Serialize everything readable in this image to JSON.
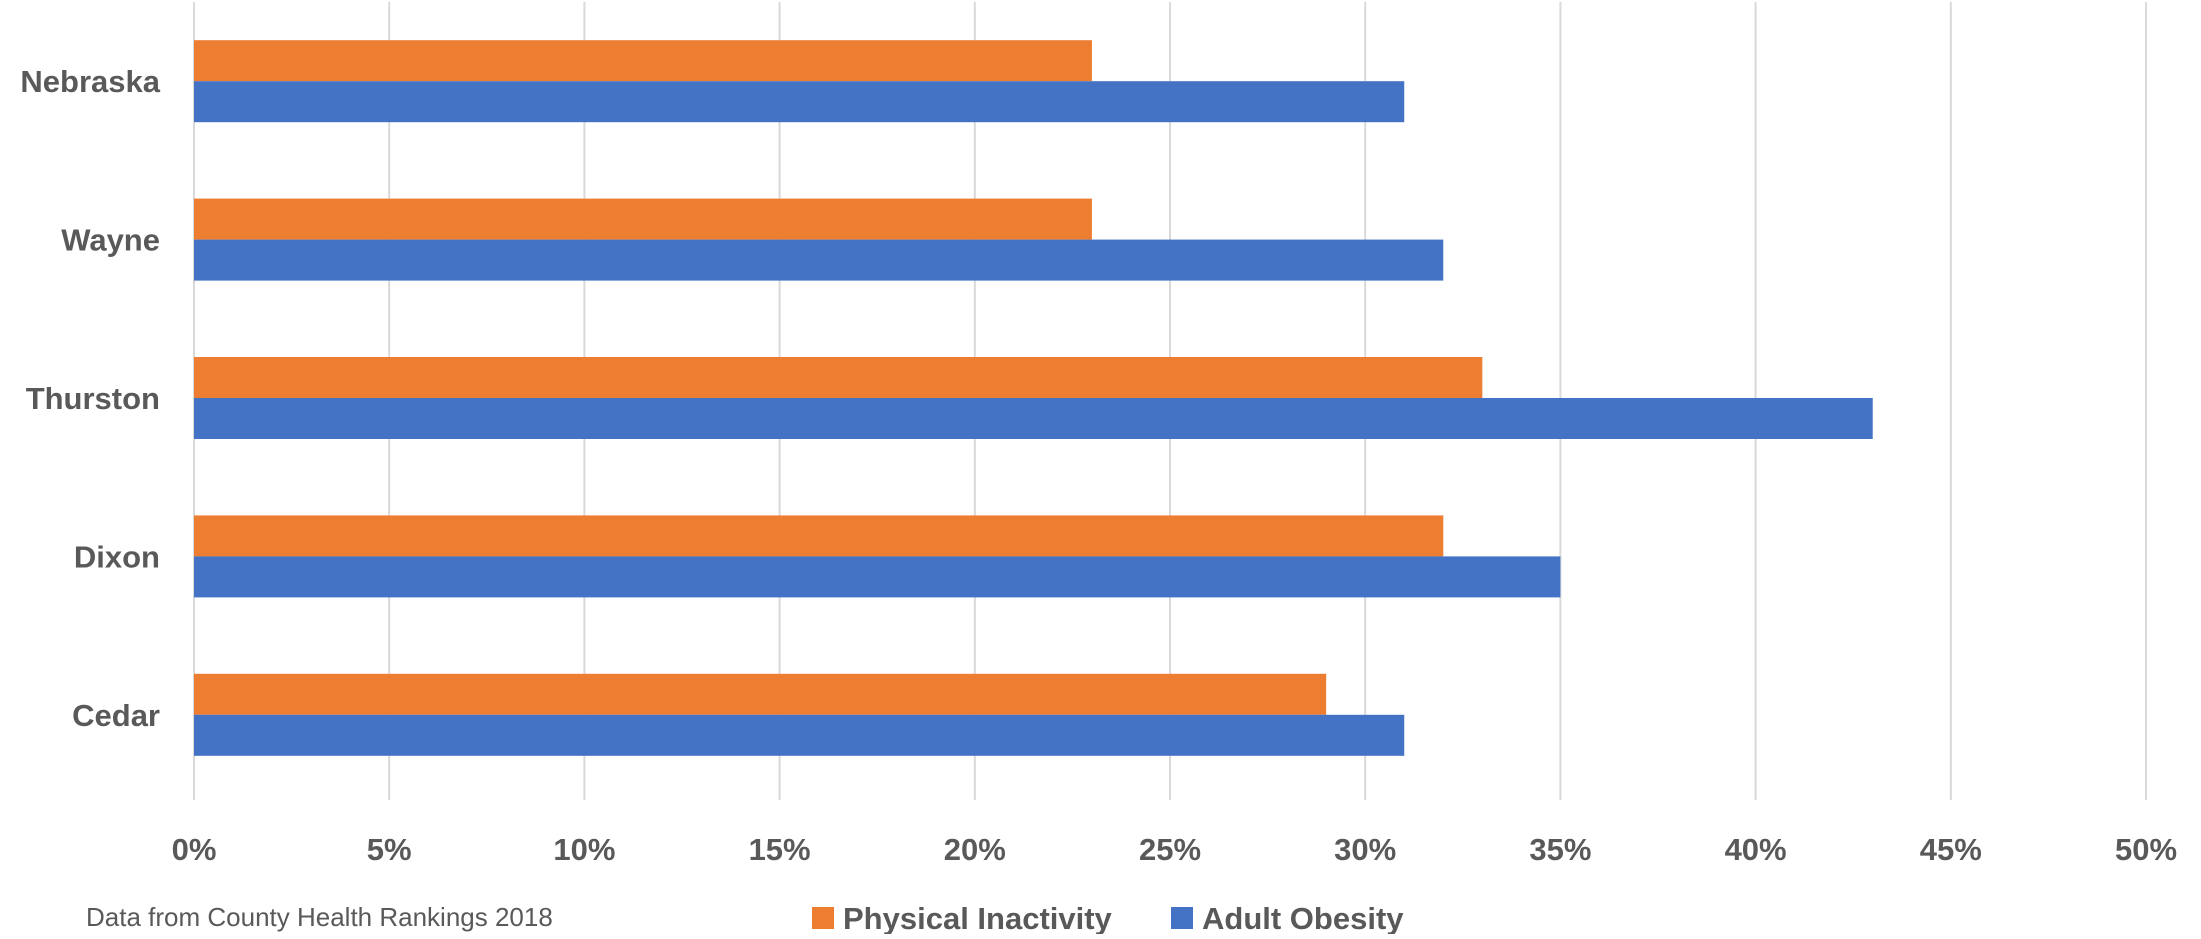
{
  "chart_data": {
    "type": "bar",
    "orientation": "horizontal",
    "categories": [
      "Nebraska",
      "Wayne",
      "Thurston",
      "Dixon",
      "Cedar"
    ],
    "series": [
      {
        "name": "Physical Inactivity",
        "color": "#ED7D31",
        "values": [
          0.23,
          0.23,
          0.33,
          0.32,
          0.29
        ]
      },
      {
        "name": "Adult Obesity",
        "color": "#4472C4",
        "values": [
          0.31,
          0.32,
          0.43,
          0.35,
          0.31
        ]
      }
    ],
    "xlim": [
      0,
      0.5
    ],
    "xticks": [
      0,
      0.05,
      0.1,
      0.15,
      0.2,
      0.25,
      0.3,
      0.35,
      0.4,
      0.45,
      0.5
    ],
    "xtick_labels": [
      "0%",
      "5%",
      "10%",
      "15%",
      "20%",
      "25%",
      "30%",
      "35%",
      "40%",
      "45%",
      "50%"
    ],
    "grid": "vertical",
    "legend_position": "bottom",
    "title": "",
    "xlabel": "",
    "ylabel": ""
  },
  "source_note": "Data from County Health Rankings 2018"
}
